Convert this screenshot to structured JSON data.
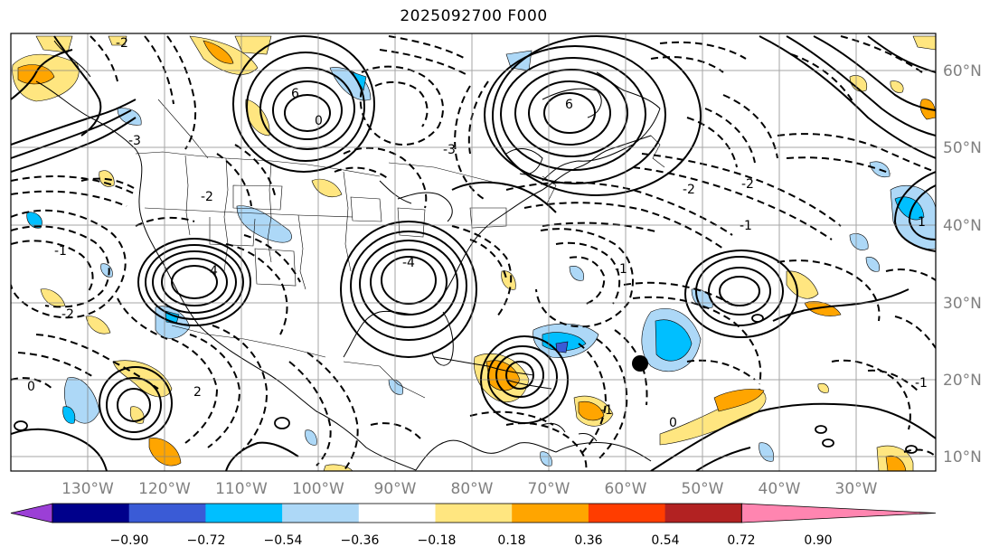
{
  "title": "2025092700 F000",
  "longitude_labels": [
    "130°W",
    "120°W",
    "110°W",
    "100°W",
    "90°W",
    "80°W",
    "70°W",
    "60°W",
    "50°W",
    "40°W",
    "30°W"
  ],
  "latitude_labels": [
    "60°N",
    "50°N",
    "40°N",
    "30°N",
    "20°N",
    "10°N"
  ],
  "colorbar": {
    "tick_labels": [
      "−0.90",
      "−0.72",
      "−0.54",
      "−0.36",
      "−0.18",
      "0.18",
      "0.36",
      "0.54",
      "0.72",
      "0.90"
    ],
    "colors": [
      "#9b3fd6",
      "#00008b",
      "#3a5bd6",
      "#00bfff",
      "#add8f7",
      "#ffffff",
      "#ffe680",
      "#ffa500",
      "#ff3d00",
      "#b22222",
      "#ff85b0"
    ],
    "extend": "both"
  },
  "contour_labels": [
    "-2",
    "-3",
    "6",
    "0",
    "-1",
    "-2",
    "-3",
    "4",
    "-4",
    "0",
    "2",
    "-2",
    "1",
    "-1",
    "6",
    "-1",
    "-2",
    "-1",
    "0",
    "-1",
    "-2"
  ],
  "grid": "on",
  "marker": "filled-circle"
}
